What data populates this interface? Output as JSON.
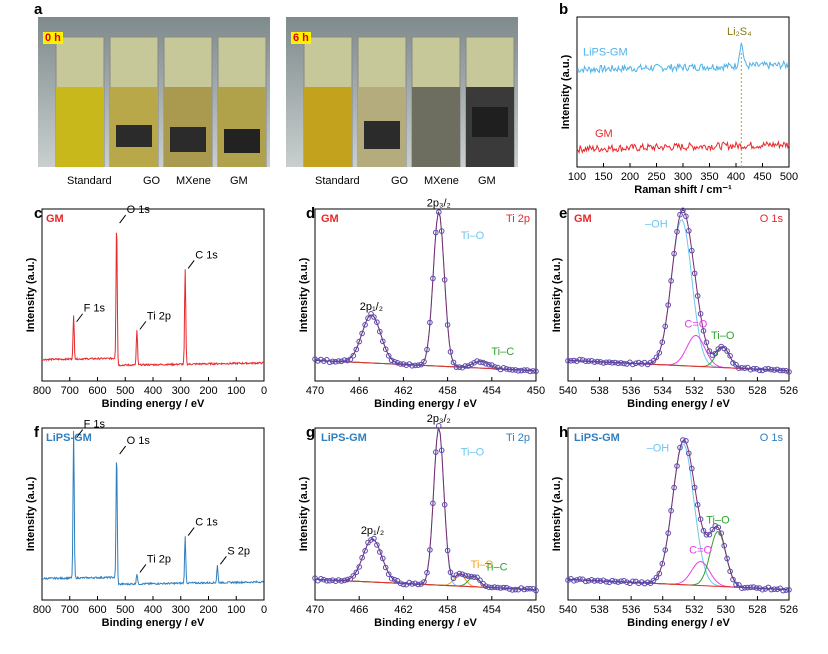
{
  "panel_letters": [
    "a",
    "b",
    "c",
    "d",
    "e",
    "f",
    "g",
    "h"
  ],
  "photos": [
    {
      "tag": "0 h",
      "labels": [
        "Standard",
        "GO",
        "MXene",
        "GM"
      ]
    },
    {
      "tag": "6 h",
      "labels": [
        "Standard",
        "GO",
        "MXene",
        "GM"
      ]
    }
  ],
  "chart_data": [
    {
      "panel": "b",
      "type": "line",
      "xlabel": "Raman shift / cm⁻¹",
      "ylabel": "Intensity (a.u.)",
      "xlim": [
        100,
        500
      ],
      "xticks": [
        100,
        150,
        200,
        250,
        300,
        350,
        400,
        450,
        500
      ],
      "annotation": "Li₂S₄",
      "annotation_x": 410,
      "series": [
        {
          "name": "LiPS-GM",
          "color": "#4fb3e8",
          "peaks": [
            [
              410,
              0.8
            ]
          ],
          "baseline": 0.65
        },
        {
          "name": "GM",
          "color": "#e8282b",
          "peaks": [],
          "baseline": 0.12
        }
      ]
    },
    {
      "panel": "c",
      "type": "line",
      "sample": "GM",
      "xlabel": "Binding energy / eV",
      "ylabel": "Intensity (a.u.)",
      "xlim": [
        800,
        0
      ],
      "xticks": [
        800,
        700,
        600,
        500,
        400,
        300,
        200,
        100,
        0
      ],
      "color": "#e8282b",
      "peaks": [
        {
          "label": "F 1s",
          "x": 686,
          "h": 0.25
        },
        {
          "label": "O 1s",
          "x": 531,
          "h": 0.82
        },
        {
          "label": "Ti 2p",
          "x": 458,
          "h": 0.2
        },
        {
          "label": "C 1s",
          "x": 284,
          "h": 0.55
        }
      ]
    },
    {
      "panel": "d",
      "type": "scatter",
      "sample": "GM",
      "region": "Ti 2p",
      "xlabel": "Binding energy / eV",
      "ylabel": "Intensity (a.u.)",
      "xlim": [
        470,
        450
      ],
      "xticks": [
        470,
        466,
        462,
        458,
        454,
        450
      ],
      "components": [
        {
          "name": "2p₃/₂ Ti–O",
          "center": 458.8,
          "height": 0.9,
          "width": 0.7,
          "color": "#6ec6ef"
        },
        {
          "name": "2p₁/₂",
          "center": 464.9,
          "height": 0.28,
          "width": 1.2,
          "color": "#6ec6ef"
        },
        {
          "name": "Ti–C",
          "center": 455.0,
          "height": 0.04,
          "width": 1.0,
          "color": "#2fa32f"
        }
      ],
      "labels": [
        {
          "text": "2p₃/₂",
          "x": 458.8
        },
        {
          "text": "2p₁/₂",
          "x": 464.9
        },
        {
          "text": "Ti–O",
          "color": "#6ec6ef"
        },
        {
          "text": "Ti–C",
          "color": "#2fa32f"
        }
      ]
    },
    {
      "panel": "e",
      "type": "scatter",
      "sample": "GM",
      "region": "O 1s",
      "xlabel": "Binding energy / eV",
      "ylabel": "Intensity (a.u.)",
      "xlim": [
        540,
        526
      ],
      "xticks": [
        540,
        538,
        536,
        534,
        532,
        530,
        528,
        526
      ],
      "components": [
        {
          "name": "–OH",
          "center": 532.8,
          "height": 0.85,
          "width": 0.9,
          "color": "#6ec6ef"
        },
        {
          "name": "C=O",
          "center": 531.9,
          "height": 0.18,
          "width": 0.8,
          "color": "#e83ee8"
        },
        {
          "name": "Ti–O",
          "center": 530.2,
          "height": 0.12,
          "width": 0.6,
          "color": "#2fa32f"
        }
      ]
    },
    {
      "panel": "f",
      "type": "line",
      "sample": "LiPS-GM",
      "xlabel": "Binding energy / eV",
      "ylabel": "Intensity (a.u.)",
      "xlim": [
        800,
        0
      ],
      "xticks": [
        800,
        700,
        600,
        500,
        400,
        300,
        200,
        100,
        0
      ],
      "color": "#2f7fbf",
      "peaks": [
        {
          "label": "F 1s",
          "x": 686,
          "h": 0.85
        },
        {
          "label": "O 1s",
          "x": 531,
          "h": 0.75
        },
        {
          "label": "Ti 2p",
          "x": 458,
          "h": 0.06
        },
        {
          "label": "C 1s",
          "x": 284,
          "h": 0.27
        },
        {
          "label": "S 2p",
          "x": 168,
          "h": 0.1
        }
      ]
    },
    {
      "panel": "g",
      "type": "scatter",
      "sample": "LiPS-GM",
      "region": "Ti 2p",
      "xlabel": "Binding energy / eV",
      "ylabel": "Intensity (a.u.)",
      "xlim": [
        470,
        450
      ],
      "xticks": [
        470,
        466,
        462,
        458,
        454,
        450
      ],
      "components": [
        {
          "name": "2p₃/₂ Ti–O",
          "center": 458.8,
          "height": 0.92,
          "width": 0.65,
          "color": "#6ec6ef"
        },
        {
          "name": "2p₁/₂",
          "center": 464.8,
          "height": 0.25,
          "width": 1.2,
          "color": "#6ec6ef"
        },
        {
          "name": "Ti–S",
          "center": 456.9,
          "height": 0.07,
          "width": 0.7,
          "color": "#f0a020"
        },
        {
          "name": "Ti–C",
          "center": 455.6,
          "height": 0.06,
          "width": 0.7,
          "color": "#2fa32f"
        }
      ],
      "labels": [
        {
          "text": "2p₃/₂",
          "x": 458.8
        },
        {
          "text": "2p₁/₂",
          "x": 464.8
        },
        {
          "text": "Ti–O",
          "color": "#6ec6ef"
        },
        {
          "text": "Ti–S",
          "color": "#f0a020"
        },
        {
          "text": "Ti–C",
          "color": "#2fa32f"
        }
      ]
    },
    {
      "panel": "h",
      "type": "scatter",
      "sample": "LiPS-GM",
      "region": "O 1s",
      "xlabel": "Binding energy / eV",
      "ylabel": "Intensity (a.u.)",
      "xlim": [
        540,
        526
      ],
      "xticks": [
        540,
        538,
        536,
        534,
        532,
        530,
        528,
        526
      ],
      "components": [
        {
          "name": "–OH",
          "center": 532.7,
          "height": 0.82,
          "width": 0.95,
          "color": "#6ec6ef"
        },
        {
          "name": "C=O",
          "center": 531.6,
          "height": 0.14,
          "width": 0.8,
          "color": "#e83ee8"
        },
        {
          "name": "Ti–O",
          "center": 530.5,
          "height": 0.32,
          "width": 0.7,
          "color": "#2fa32f"
        }
      ]
    }
  ]
}
